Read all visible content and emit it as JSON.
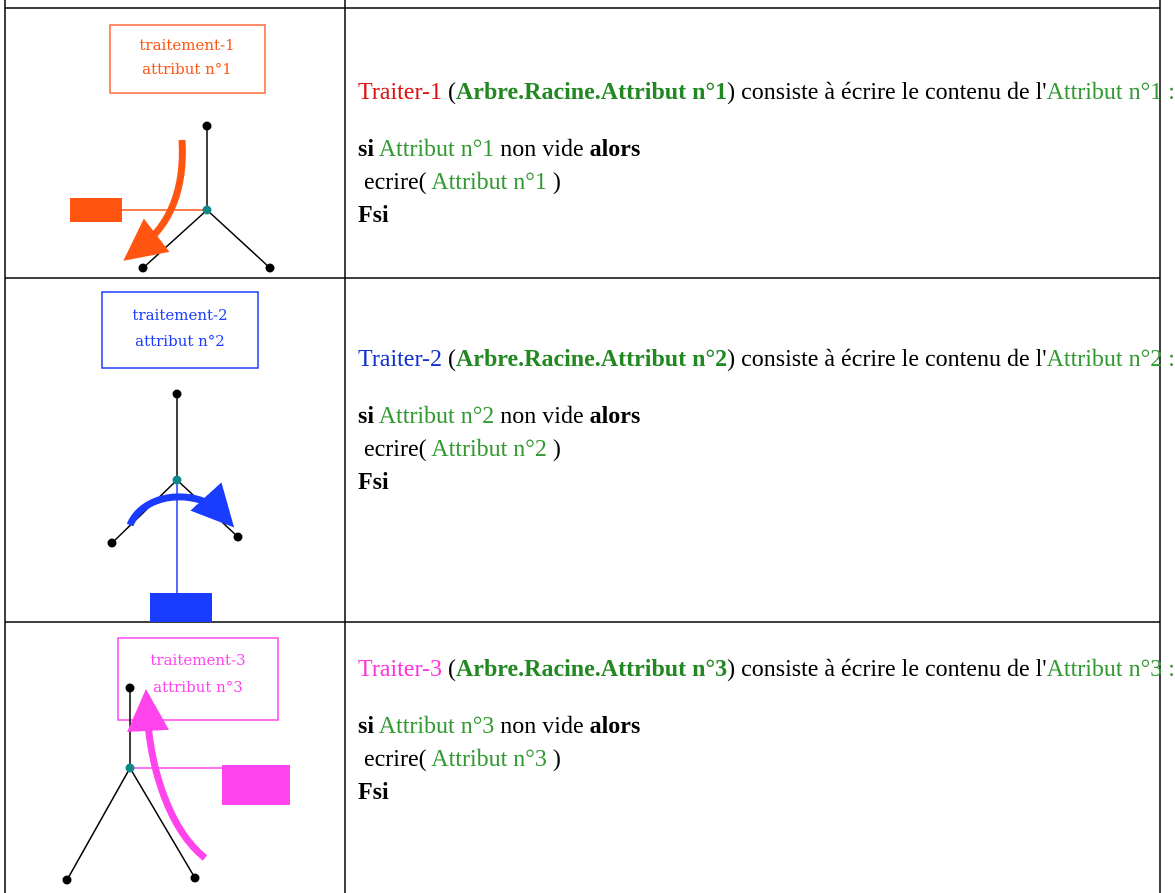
{
  "rows": [
    {
      "label_box": [
        "traitement-1",
        "attribut n°1"
      ],
      "lines": [
        [
          "Traiter-1",
          "(",
          "Arbre.Racine.Attribut n°1",
          ") consiste à écrire le contenu de l'",
          "Attribut n°1 :"
        ],
        [
          "si",
          "Attribut n°1",
          "non vide",
          "alors"
        ],
        [
          "ecrire(",
          "Attribut n°1",
          ")"
        ],
        [
          "Fsi"
        ]
      ]
    },
    {
      "label_box": [
        "traitement-2",
        "attribut n°2"
      ],
      "lines": [
        [
          "Traiter-2",
          "(",
          "Arbre.Racine.Attribut n°2",
          ") consiste à écrire le contenu de l'",
          "Attribut n°2 :"
        ],
        [
          "si",
          "Attribut n°2",
          "non vide",
          "alors"
        ],
        [
          "ecrire(",
          "Attribut n°2",
          ")"
        ],
        [
          "Fsi"
        ]
      ]
    },
    {
      "label_box": [
        "traitement-3",
        "attribut n°3"
      ],
      "lines": [
        [
          "Traiter-3",
          "(",
          "Arbre.Racine.Attribut n°3",
          ") consiste à écrire le contenu de l'",
          "Attribut n°3 :"
        ],
        [
          "si",
          "Attribut n°3",
          "non vide",
          "alors"
        ],
        [
          "ecrire(",
          "Attribut n°3",
          ")"
        ],
        [
          "Fsi"
        ]
      ]
    }
  ]
}
